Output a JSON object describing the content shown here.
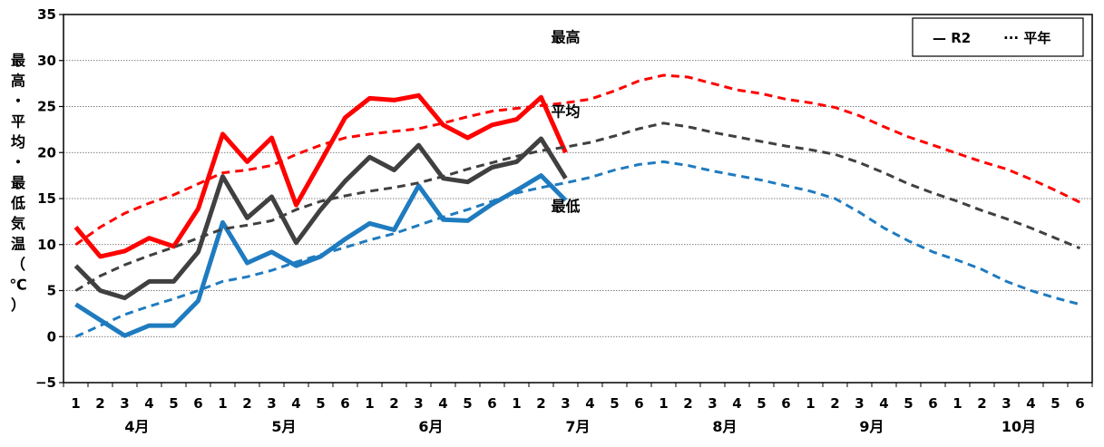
{
  "chart_data": {
    "type": "line",
    "ylabel_chars": [
      "最",
      "高",
      "・",
      "平",
      "均",
      "・",
      "最",
      "低",
      "気",
      "温",
      "（",
      "℃",
      "）"
    ],
    "ylim": [
      -5,
      35
    ],
    "yticks": [
      -5,
      0,
      5,
      10,
      15,
      20,
      25,
      30,
      35
    ],
    "grid": true,
    "legend_position": "top-right",
    "legend": [
      {
        "symbol": "—",
        "label": "R2"
      },
      {
        "symbol": "···",
        "label": "平年"
      }
    ],
    "x_ticks": [
      "1",
      "2",
      "3",
      "4",
      "5",
      "6",
      "1",
      "2",
      "3",
      "4",
      "5",
      "6",
      "1",
      "2",
      "3",
      "4",
      "5",
      "6",
      "1",
      "2",
      "3",
      "4",
      "5",
      "6",
      "1",
      "2",
      "3",
      "4",
      "5",
      "6",
      "1",
      "2",
      "3",
      "4",
      "5",
      "6",
      "1",
      "2",
      "3",
      "4",
      "5",
      "6"
    ],
    "months": [
      {
        "label": "4月",
        "start": 0
      },
      {
        "label": "5月",
        "start": 6
      },
      {
        "label": "6月",
        "start": 12
      },
      {
        "label": "7月",
        "start": 18
      },
      {
        "label": "8月",
        "start": 24
      },
      {
        "label": "9月",
        "start": 30
      },
      {
        "label": "10月",
        "start": 36
      }
    ],
    "annotations": [
      {
        "text": "最高",
        "x": 20.5,
        "y": 32.6
      },
      {
        "text": "平均",
        "x": 20.5,
        "y": 24.5
      },
      {
        "text": "最低",
        "x": 20.5,
        "y": 14.2
      }
    ],
    "series": [
      {
        "key": "r2_max",
        "color": "#ff0000",
        "style": "solid",
        "values": [
          11.9,
          8.7,
          9.3,
          10.7,
          9.8,
          13.9,
          22.0,
          19.0,
          21.6,
          14.3,
          19.0,
          23.8,
          25.9,
          25.7,
          26.2,
          23.0,
          21.6,
          23.0,
          23.6,
          26.0,
          20.0
        ]
      },
      {
        "key": "r2_avg",
        "color": "#404040",
        "style": "solid",
        "values": [
          7.7,
          5.0,
          4.2,
          6.0,
          6.0,
          9.2,
          17.4,
          12.9,
          15.2,
          10.2,
          13.8,
          16.9,
          19.5,
          18.1,
          20.8,
          17.2,
          16.8,
          18.4,
          19.0,
          21.5,
          17.2
        ]
      },
      {
        "key": "r2_min",
        "color": "#1f7bbf",
        "style": "solid",
        "values": [
          3.5,
          1.8,
          0.1,
          1.2,
          1.2,
          3.9,
          12.4,
          8.0,
          9.2,
          7.7,
          8.7,
          10.6,
          12.3,
          11.6,
          16.4,
          12.7,
          12.6,
          14.4,
          15.9,
          17.5,
          14.8
        ]
      },
      {
        "key": "norm_max",
        "color": "#ff0000",
        "style": "dash",
        "values": [
          10.0,
          11.9,
          13.4,
          14.5,
          15.4,
          16.6,
          17.8,
          18.1,
          18.6,
          19.8,
          20.8,
          21.6,
          22.0,
          22.3,
          22.6,
          23.2,
          23.9,
          24.5,
          24.8,
          25.1,
          25.4,
          25.8,
          26.7,
          27.8,
          28.4,
          28.2,
          27.5,
          26.8,
          26.4,
          25.8,
          25.4,
          24.9,
          24.0,
          22.8,
          21.7,
          20.8,
          19.9,
          19.0,
          18.2,
          17.1,
          15.9,
          14.6
        ]
      },
      {
        "key": "norm_avg",
        "color": "#404040",
        "style": "dash",
        "values": [
          5.0,
          6.6,
          7.8,
          8.8,
          9.7,
          10.7,
          11.7,
          12.1,
          12.6,
          13.8,
          14.7,
          15.3,
          15.8,
          16.2,
          16.7,
          17.4,
          18.2,
          18.9,
          19.6,
          20.2,
          20.6,
          21.1,
          21.8,
          22.6,
          23.2,
          22.8,
          22.2,
          21.7,
          21.2,
          20.7,
          20.3,
          19.8,
          18.9,
          17.8,
          16.6,
          15.6,
          14.7,
          13.7,
          12.8,
          11.8,
          10.7,
          9.6
        ]
      },
      {
        "key": "norm_min",
        "color": "#1f7bbf",
        "style": "dash",
        "values": [
          0.0,
          1.2,
          2.4,
          3.3,
          4.1,
          5.0,
          6.0,
          6.5,
          7.2,
          8.1,
          8.9,
          9.7,
          10.5,
          11.2,
          12.1,
          13.0,
          13.8,
          14.7,
          15.6,
          16.2,
          16.7,
          17.3,
          18.1,
          18.7,
          19.0,
          18.6,
          18.0,
          17.5,
          17.0,
          16.4,
          15.8,
          15.0,
          13.5,
          11.8,
          10.4,
          9.2,
          8.3,
          7.3,
          6.0,
          5.0,
          4.2,
          3.5
        ]
      }
    ]
  }
}
